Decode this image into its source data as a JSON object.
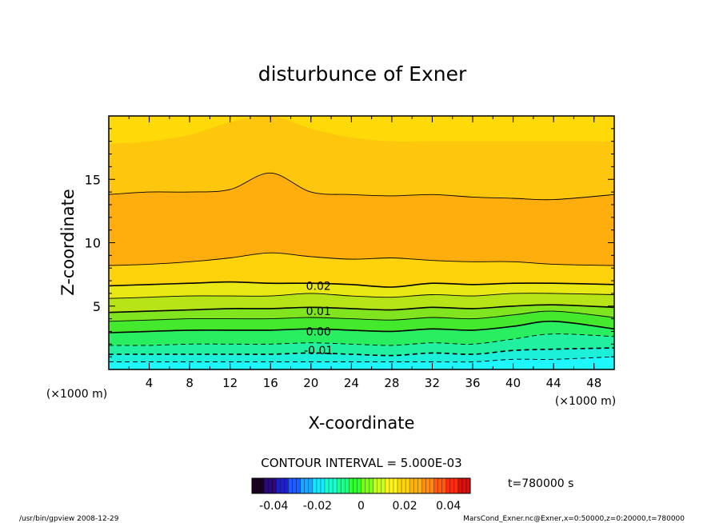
{
  "chart_data": {
    "type": "contour",
    "title": "disturbunce of Exner",
    "xlabel": "X-coordinate",
    "ylabel": "Z-coordinate",
    "x_unit_left": "(×1000 m)",
    "x_unit_right": "(×1000 m)",
    "xlim": [
      0,
      50
    ],
    "ylim": [
      0,
      20
    ],
    "x_ticks": [
      4,
      8,
      12,
      16,
      20,
      24,
      28,
      32,
      36,
      40,
      44,
      48
    ],
    "y_ticks": [
      5,
      10,
      15
    ],
    "contour_interval_text": "CONTOUR INTERVAL = 5.000E-03",
    "time_label": "t=780000 s",
    "contour_labels": [
      {
        "text": "0.02",
        "x": 17.5,
        "z": 6.6
      },
      {
        "text": "0.01",
        "x": 17.5,
        "z": 4.6
      },
      {
        "text": "0.00",
        "x": 17.5,
        "z": 3.0
      },
      {
        "text": "-0.01",
        "x": 17.5,
        "z": 1.5
      }
    ],
    "colorbar": {
      "min": -0.05,
      "max": 0.05,
      "tick_labels": [
        "-0.04",
        "-0.02",
        "0",
        "0.02",
        "0.04"
      ],
      "tick_values": [
        -0.04,
        -0.02,
        0,
        0.02,
        0.04
      ],
      "colors": [
        "#1a0020",
        "#2c0a7a",
        "#1f1fc8",
        "#1e5cff",
        "#1aa7ff",
        "#17e6ff",
        "#19ffd0",
        "#1cff8a",
        "#30ff30",
        "#7dff1a",
        "#c9ff18",
        "#fff51c",
        "#ffd40a",
        "#ffb20a",
        "#ff8c0c",
        "#ff5a10",
        "#ff2a10",
        "#d81010"
      ]
    },
    "bands": [
      {
        "level": "-0.015",
        "color": "#1ff7ff",
        "lower_z": 0,
        "upper_z": [
          0.6,
          0.6,
          0.6,
          0.6,
          0.6,
          0.6,
          0.6,
          0.6,
          0.6,
          0.6,
          0.8,
          0.8,
          1.0
        ]
      },
      {
        "level": "-0.01",
        "color": "#1cf0d8",
        "lower_z": 0,
        "upper_z": [
          1.2,
          1.2,
          1.2,
          1.2,
          1.2,
          1.3,
          1.2,
          1.1,
          1.3,
          1.2,
          1.5,
          1.6,
          1.7
        ]
      },
      {
        "level": "-0.005",
        "color": "#20f0a0",
        "lower_z": 0,
        "upper_z": [
          1.9,
          1.9,
          2.0,
          2.0,
          2.0,
          2.1,
          2.0,
          1.9,
          2.1,
          2.0,
          2.4,
          2.8,
          2.6
        ]
      },
      {
        "level": "0.00",
        "color": "#28ee60",
        "lower_z": 0,
        "upper_z": [
          2.9,
          3.0,
          3.1,
          3.1,
          3.1,
          3.2,
          3.1,
          3.0,
          3.2,
          3.1,
          3.4,
          3.8,
          3.2
        ]
      },
      {
        "level": "0.005",
        "color": "#44e82c",
        "lower_z": 0,
        "upper_z": [
          3.8,
          3.9,
          4.0,
          4.0,
          4.0,
          4.1,
          4.0,
          3.9,
          4.1,
          4.0,
          4.3,
          4.6,
          4.1
        ]
      },
      {
        "level": "0.01",
        "color": "#80e41e",
        "lower_z": 0,
        "upper_z": [
          4.5,
          4.6,
          4.7,
          4.8,
          4.8,
          4.9,
          4.8,
          4.7,
          4.9,
          4.8,
          5.0,
          5.1,
          4.9
        ]
      },
      {
        "level": "0.015",
        "color": "#b6e416",
        "lower_z": 0,
        "upper_z": [
          5.6,
          5.7,
          5.8,
          5.8,
          5.8,
          6.0,
          5.8,
          5.7,
          5.9,
          5.8,
          6.0,
          6.0,
          5.9
        ]
      },
      {
        "level": "0.02",
        "color": "#e9e714",
        "lower_z": 0,
        "upper_z": [
          6.6,
          6.7,
          6.8,
          6.9,
          6.8,
          6.8,
          6.7,
          6.5,
          6.8,
          6.7,
          6.8,
          6.8,
          6.7
        ]
      },
      {
        "level": "0.025",
        "color": "#ffd30c",
        "lower_z": 0,
        "upper_z": [
          8.2,
          8.3,
          8.5,
          8.8,
          9.2,
          8.9,
          8.7,
          8.8,
          8.6,
          8.5,
          8.5,
          8.3,
          8.2
        ]
      },
      {
        "level": "0.03",
        "color": "#ffae0e",
        "lower_z": 0,
        "upper_z": [
          13.8,
          14.0,
          14.0,
          14.2,
          15.5,
          14.0,
          13.8,
          13.7,
          13.8,
          13.6,
          13.5,
          13.4,
          13.8
        ]
      },
      {
        "level": "0.025-top",
        "color": "#ffc60e",
        "lower_z": 0,
        "upper_z": [
          17.8,
          18.0,
          18.5,
          19.5,
          20.0,
          19.0,
          18.3,
          18.0,
          18.0,
          18.0,
          18.0,
          18.0,
          18.0
        ]
      },
      {
        "level": "0.02-top",
        "color": "#ffd908",
        "lower_z": 0,
        "upper_z": [
          20,
          20,
          20,
          20,
          20,
          20,
          20,
          20,
          20,
          20,
          20,
          20,
          20
        ]
      }
    ],
    "band_x": [
      0,
      4,
      8,
      12,
      16,
      20,
      24,
      28,
      32,
      36,
      40,
      44,
      50
    ],
    "contour_lines": [
      {
        "level": "-0.015",
        "style": "dashed",
        "z": [
          0.6,
          0.6,
          0.6,
          0.6,
          0.6,
          0.6,
          0.6,
          0.6,
          0.6,
          0.6,
          0.8,
          0.8,
          1.0
        ]
      },
      {
        "level": "-0.01",
        "style": "dashed",
        "z": [
          1.2,
          1.2,
          1.2,
          1.2,
          1.2,
          1.3,
          1.2,
          1.1,
          1.3,
          1.2,
          1.5,
          1.6,
          1.7
        ]
      },
      {
        "level": "-0.005",
        "style": "dashed",
        "z": [
          1.9,
          1.9,
          2.0,
          2.0,
          2.0,
          2.1,
          2.0,
          1.9,
          2.1,
          2.0,
          2.4,
          2.8,
          2.6
        ]
      },
      {
        "level": "0.00",
        "style": "solid",
        "z": [
          2.9,
          3.0,
          3.1,
          3.1,
          3.1,
          3.2,
          3.1,
          3.0,
          3.2,
          3.1,
          3.4,
          3.8,
          3.2
        ]
      },
      {
        "level": "0.005",
        "style": "solid",
        "z": [
          3.8,
          3.9,
          4.0,
          4.0,
          4.0,
          4.1,
          4.0,
          3.9,
          4.1,
          4.0,
          4.3,
          4.6,
          4.1
        ]
      },
      {
        "level": "0.01",
        "style": "solid",
        "z": [
          4.5,
          4.6,
          4.7,
          4.8,
          4.8,
          4.9,
          4.8,
          4.7,
          4.9,
          4.8,
          5.0,
          5.1,
          4.9
        ]
      },
      {
        "level": "0.015",
        "style": "solid",
        "z": [
          5.6,
          5.7,
          5.8,
          5.8,
          5.8,
          6.0,
          5.8,
          5.7,
          5.9,
          5.8,
          6.0,
          6.0,
          5.9
        ]
      },
      {
        "level": "0.02",
        "style": "solid",
        "z": [
          6.6,
          6.7,
          6.8,
          6.9,
          6.8,
          6.8,
          6.7,
          6.5,
          6.8,
          6.7,
          6.8,
          6.8,
          6.7
        ]
      },
      {
        "level": "0.025",
        "style": "solid",
        "z": [
          8.2,
          8.3,
          8.5,
          8.8,
          9.2,
          8.9,
          8.7,
          8.8,
          8.6,
          8.5,
          8.5,
          8.3,
          8.2
        ]
      },
      {
        "level": "0.025-upper",
        "style": "solid",
        "z": [
          13.8,
          14.0,
          14.0,
          14.2,
          15.5,
          14.0,
          13.8,
          13.7,
          13.8,
          13.6,
          13.5,
          13.4,
          13.8
        ]
      }
    ]
  },
  "footer": {
    "left": "/usr/bin/gpview   2008-12-29",
    "right": "MarsCond_Exner.nc@Exner,x=0:50000,z=0:20000,t=780000"
  }
}
